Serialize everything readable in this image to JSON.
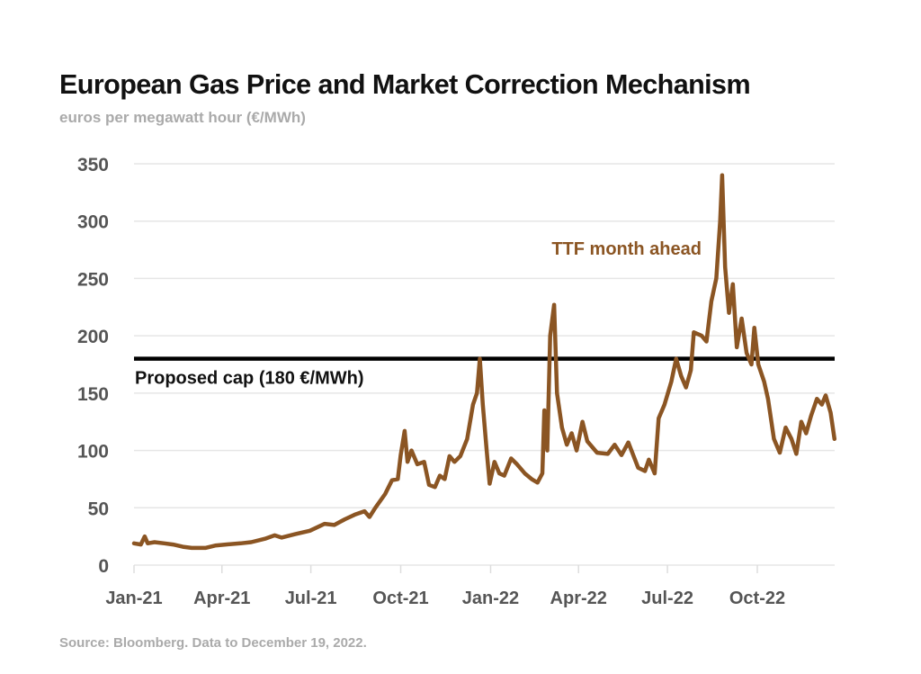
{
  "title": "European Gas Price and Market Correction Mechanism",
  "subtitle": "euros per megawatt hour (€/MWh)",
  "source": "Source: Bloomberg. Data to December 19, 2022.",
  "colors": {
    "series": "#8B5523",
    "cap": "#000000",
    "grid": "#e6e6e6",
    "tick_text": "#555555",
    "muted_text": "#aaaaaa"
  },
  "chart_data": {
    "type": "line",
    "title": "European Gas Price and Market Correction Mechanism",
    "subtitle": "euros per megawatt hour (€/MWh)",
    "xlabel": "",
    "ylabel": "€/MWh",
    "ylim": [
      0,
      350
    ],
    "yticks": [
      0,
      50,
      100,
      150,
      200,
      250,
      300,
      350
    ],
    "ytick_labels": [
      "0",
      "50",
      "100",
      "150",
      "200",
      "250",
      "300",
      "350"
    ],
    "xlim": [
      "2021-01-01",
      "2022-12-19"
    ],
    "xticks": [
      "2021-01-01",
      "2021-04-01",
      "2021-07-01",
      "2021-10-01",
      "2022-01-01",
      "2022-04-01",
      "2022-07-01",
      "2022-10-01"
    ],
    "xtick_labels": [
      "Jan-21",
      "Apr-21",
      "Jul-21",
      "Oct-21",
      "Jan-22",
      "Apr-22",
      "Jul-22",
      "Oct-22"
    ],
    "grid": true,
    "legend": "none",
    "series": [
      {
        "name": "TTF month ahead",
        "label_position": "top-right",
        "points": [
          [
            "2021-01-01",
            19
          ],
          [
            "2021-01-08",
            18
          ],
          [
            "2021-01-12",
            25
          ],
          [
            "2021-01-15",
            19
          ],
          [
            "2021-01-22",
            20
          ],
          [
            "2021-02-01",
            19
          ],
          [
            "2021-02-10",
            18
          ],
          [
            "2021-02-20",
            16
          ],
          [
            "2021-03-01",
            15
          ],
          [
            "2021-03-15",
            15
          ],
          [
            "2021-03-25",
            17
          ],
          [
            "2021-04-05",
            18
          ],
          [
            "2021-04-20",
            19
          ],
          [
            "2021-05-01",
            20
          ],
          [
            "2021-05-15",
            23
          ],
          [
            "2021-05-25",
            26
          ],
          [
            "2021-06-01",
            24
          ],
          [
            "2021-06-15",
            27
          ],
          [
            "2021-06-30",
            30
          ],
          [
            "2021-07-10",
            34
          ],
          [
            "2021-07-15",
            36
          ],
          [
            "2021-07-25",
            35
          ],
          [
            "2021-08-05",
            40
          ],
          [
            "2021-08-15",
            44
          ],
          [
            "2021-08-25",
            47
          ],
          [
            "2021-08-30",
            42
          ],
          [
            "2021-09-05",
            50
          ],
          [
            "2021-09-15",
            62
          ],
          [
            "2021-09-22",
            74
          ],
          [
            "2021-09-28",
            75
          ],
          [
            "2021-10-01",
            96
          ],
          [
            "2021-10-05",
            117
          ],
          [
            "2021-10-08",
            90
          ],
          [
            "2021-10-12",
            100
          ],
          [
            "2021-10-18",
            88
          ],
          [
            "2021-10-25",
            90
          ],
          [
            "2021-10-30",
            70
          ],
          [
            "2021-11-05",
            68
          ],
          [
            "2021-11-10",
            78
          ],
          [
            "2021-11-15",
            75
          ],
          [
            "2021-11-20",
            95
          ],
          [
            "2021-11-25",
            90
          ],
          [
            "2021-12-01",
            95
          ],
          [
            "2021-12-08",
            110
          ],
          [
            "2021-12-14",
            140
          ],
          [
            "2021-12-18",
            150
          ],
          [
            "2021-12-21",
            180
          ],
          [
            "2021-12-24",
            140
          ],
          [
            "2021-12-28",
            100
          ],
          [
            "2021-12-31",
            71
          ],
          [
            "2022-01-05",
            90
          ],
          [
            "2022-01-10",
            80
          ],
          [
            "2022-01-15",
            78
          ],
          [
            "2022-01-22",
            93
          ],
          [
            "2022-01-28",
            88
          ],
          [
            "2022-02-05",
            80
          ],
          [
            "2022-02-12",
            75
          ],
          [
            "2022-02-18",
            72
          ],
          [
            "2022-02-23",
            80
          ],
          [
            "2022-02-25",
            135
          ],
          [
            "2022-02-28",
            100
          ],
          [
            "2022-03-03",
            200
          ],
          [
            "2022-03-07",
            227
          ],
          [
            "2022-03-10",
            150
          ],
          [
            "2022-03-15",
            120
          ],
          [
            "2022-03-20",
            105
          ],
          [
            "2022-03-25",
            115
          ],
          [
            "2022-03-30",
            100
          ],
          [
            "2022-04-05",
            125
          ],
          [
            "2022-04-10",
            108
          ],
          [
            "2022-04-20",
            98
          ],
          [
            "2022-05-01",
            97
          ],
          [
            "2022-05-08",
            105
          ],
          [
            "2022-05-15",
            96
          ],
          [
            "2022-05-22",
            107
          ],
          [
            "2022-06-01",
            85
          ],
          [
            "2022-06-08",
            82
          ],
          [
            "2022-06-12",
            92
          ],
          [
            "2022-06-18",
            80
          ],
          [
            "2022-06-22",
            128
          ],
          [
            "2022-06-28",
            140
          ],
          [
            "2022-07-05",
            160
          ],
          [
            "2022-07-10",
            180
          ],
          [
            "2022-07-15",
            165
          ],
          [
            "2022-07-20",
            155
          ],
          [
            "2022-07-25",
            170
          ],
          [
            "2022-07-28",
            203
          ],
          [
            "2022-08-05",
            200
          ],
          [
            "2022-08-10",
            195
          ],
          [
            "2022-08-15",
            230
          ],
          [
            "2022-08-20",
            250
          ],
          [
            "2022-08-24",
            300
          ],
          [
            "2022-08-26",
            340
          ],
          [
            "2022-08-29",
            260
          ],
          [
            "2022-09-02",
            220
          ],
          [
            "2022-09-06",
            245
          ],
          [
            "2022-09-10",
            190
          ],
          [
            "2022-09-15",
            215
          ],
          [
            "2022-09-20",
            185
          ],
          [
            "2022-09-25",
            175
          ],
          [
            "2022-09-28",
            207
          ],
          [
            "2022-10-02",
            175
          ],
          [
            "2022-10-08",
            160
          ],
          [
            "2022-10-12",
            145
          ],
          [
            "2022-10-18",
            110
          ],
          [
            "2022-10-24",
            98
          ],
          [
            "2022-10-30",
            120
          ],
          [
            "2022-11-05",
            110
          ],
          [
            "2022-11-10",
            97
          ],
          [
            "2022-11-15",
            125
          ],
          [
            "2022-11-20",
            115
          ],
          [
            "2022-11-25",
            130
          ],
          [
            "2022-12-01",
            145
          ],
          [
            "2022-12-06",
            140
          ],
          [
            "2022-12-10",
            148
          ],
          [
            "2022-12-15",
            133
          ],
          [
            "2022-12-19",
            110
          ]
        ]
      }
    ],
    "annotations": [
      {
        "type": "hline",
        "y": 180,
        "label": "Proposed cap (180 €/MWh)"
      },
      {
        "type": "series_label",
        "text": "TTF month ahead"
      }
    ]
  }
}
